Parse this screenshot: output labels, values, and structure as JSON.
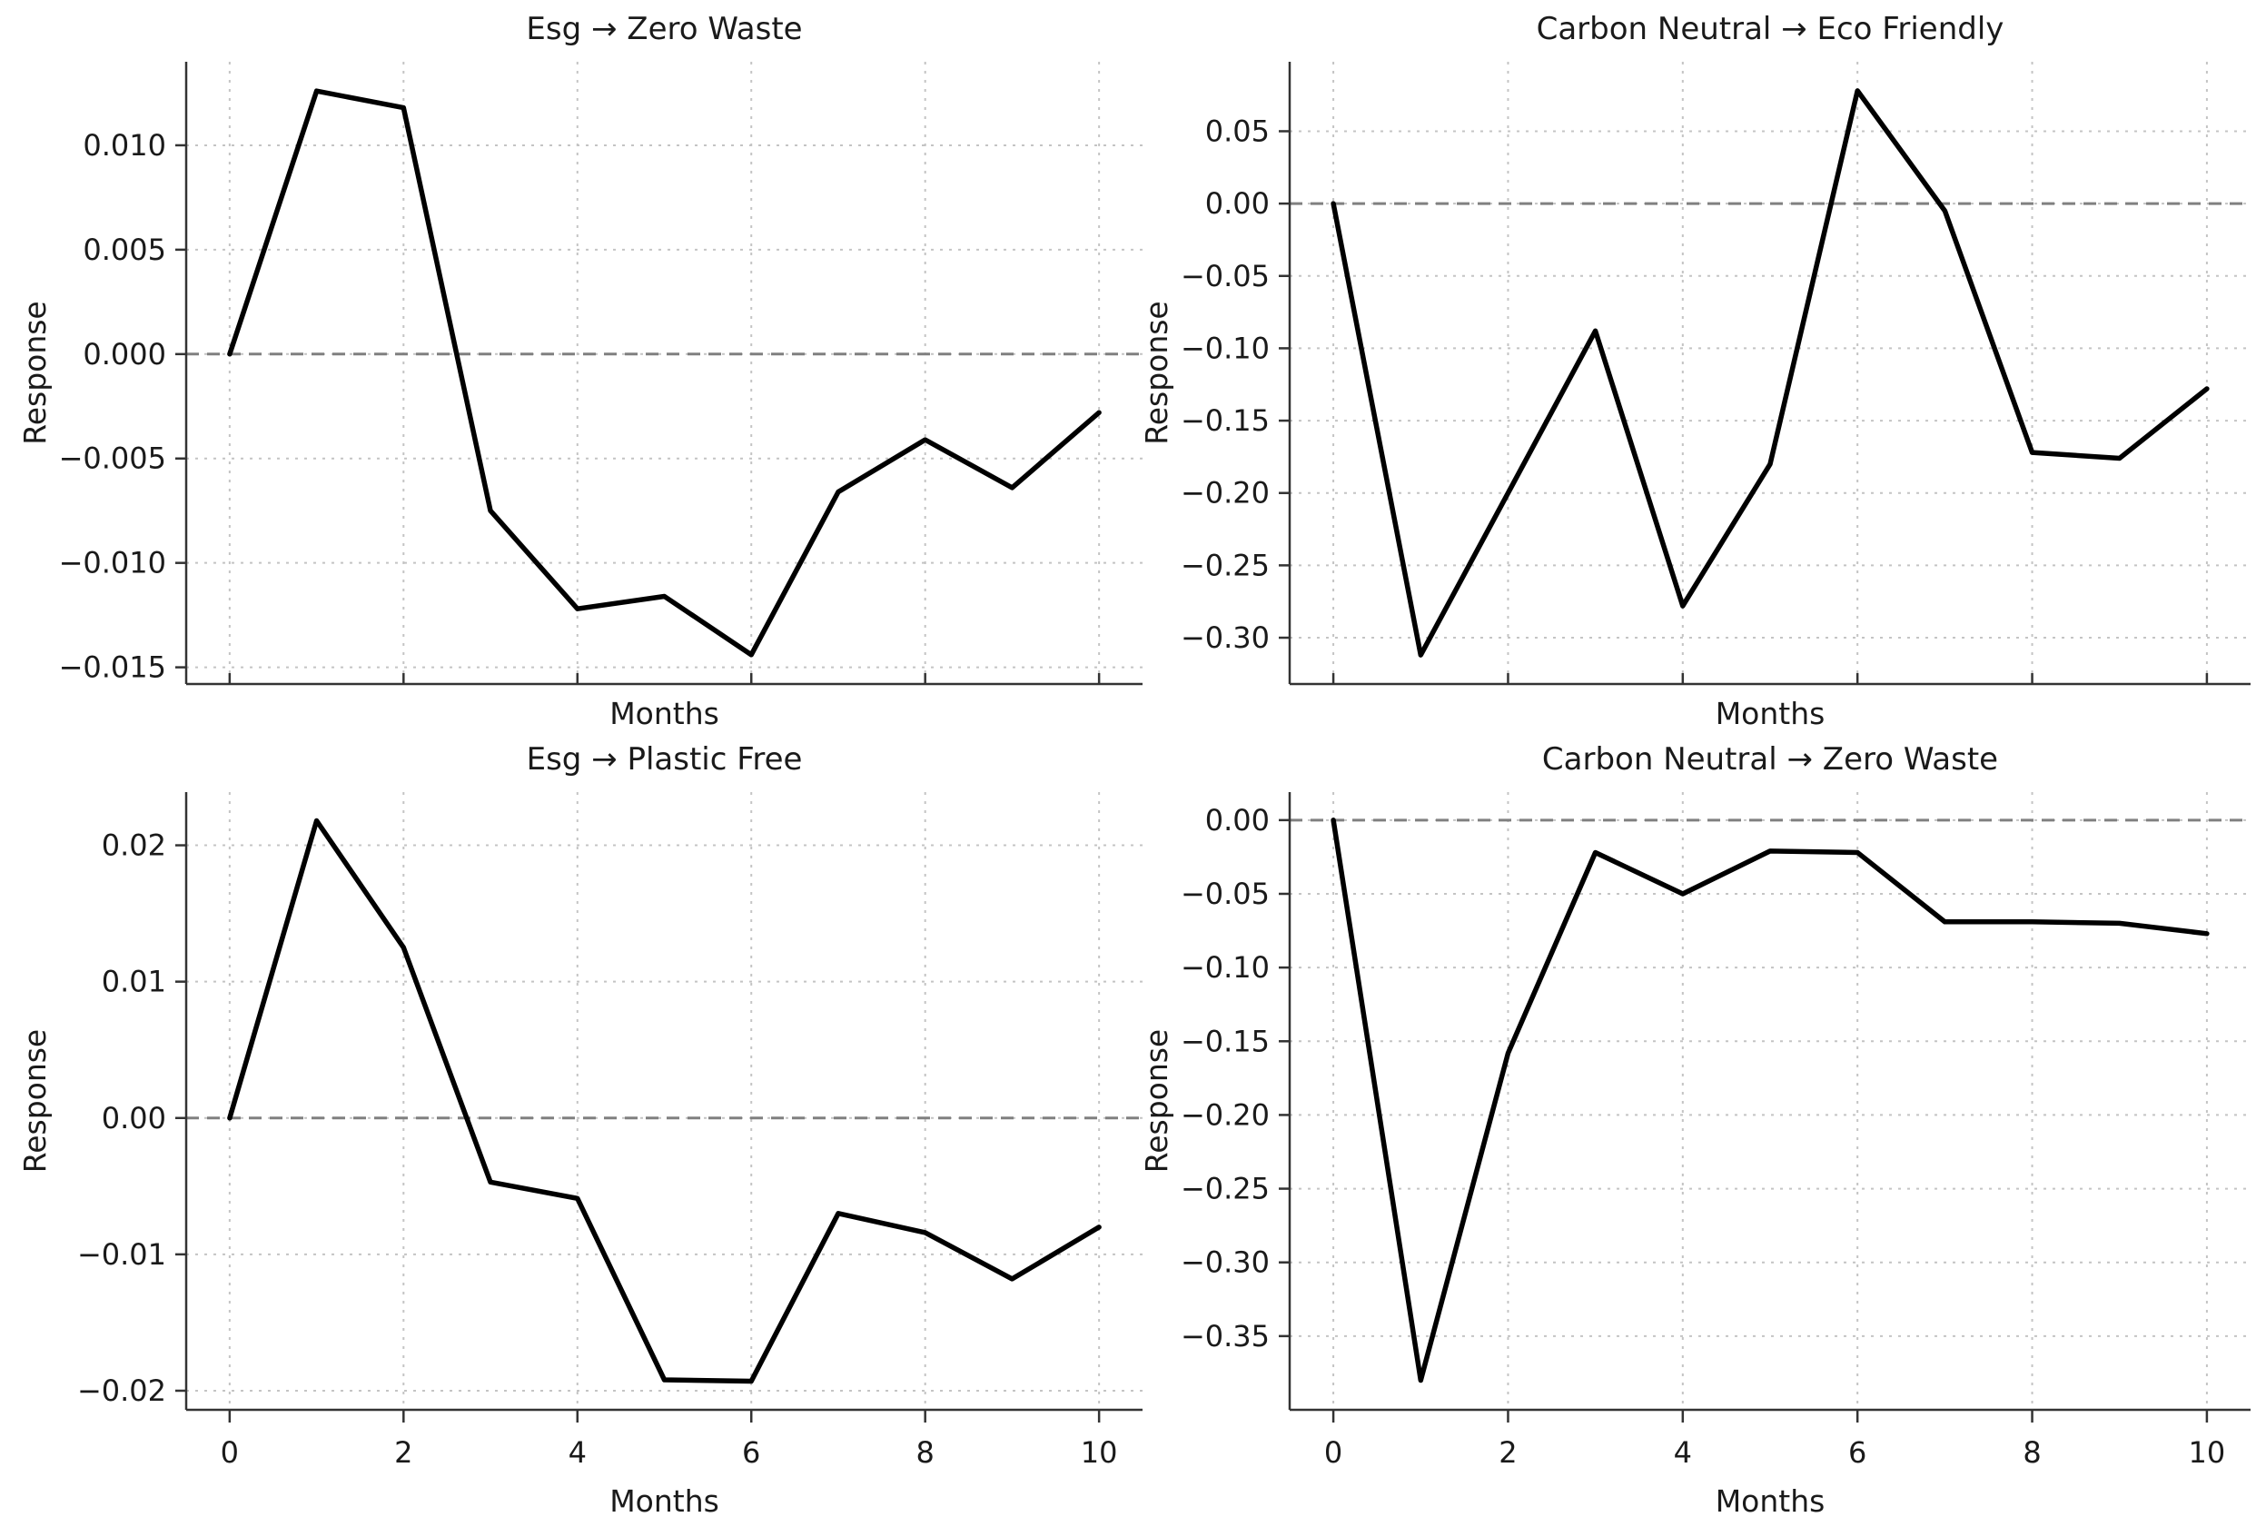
{
  "figure": {
    "background": "#ffffff",
    "text_color": "#1a1a1a",
    "series_color": "#000000",
    "grid_color": "#c4c4c4",
    "zero_line_color": "#808080",
    "spine_color": "#333333"
  },
  "chart_data": [
    {
      "type": "line",
      "title": "Esg → Zero Waste",
      "xlabel": "Months",
      "ylabel": "Response",
      "x": [
        0,
        1,
        2,
        3,
        4,
        5,
        6,
        7,
        8,
        9,
        10
      ],
      "values": [
        0.0,
        0.0126,
        0.0118,
        -0.0075,
        -0.0122,
        -0.0116,
        -0.0144,
        -0.0066,
        -0.0041,
        -0.0064,
        -0.0028
      ],
      "xlim": [
        -0.5,
        10.5
      ],
      "ylim": [
        -0.0158,
        0.014
      ],
      "xticks": [
        0,
        2,
        4,
        6,
        8,
        10
      ],
      "xtick_labels": [
        "0",
        "2",
        "4",
        "6",
        "8",
        "10"
      ],
      "show_xtick_labels": false,
      "yticks": [
        0.01,
        0.005,
        0.0,
        -0.005,
        -0.01,
        -0.015
      ],
      "ytick_labels": [
        "0.010",
        "0.005",
        "0.000",
        "−0.005",
        "−0.010",
        "−0.015"
      ],
      "zero_line": true,
      "grid": true,
      "legend": "none"
    },
    {
      "type": "line",
      "title": "Carbon Neutral → Eco Friendly",
      "xlabel": "Months",
      "ylabel": "Response",
      "x": [
        0,
        1,
        2,
        3,
        4,
        5,
        6,
        7,
        8,
        9,
        10
      ],
      "values": [
        0.0,
        -0.312,
        -0.2,
        -0.088,
        -0.278,
        -0.18,
        0.078,
        -0.005,
        -0.172,
        -0.176,
        -0.128
      ],
      "xlim": [
        -0.5,
        10.5
      ],
      "ylim": [
        -0.332,
        0.098
      ],
      "xticks": [
        0,
        2,
        4,
        6,
        8,
        10
      ],
      "xtick_labels": [
        "0",
        "2",
        "4",
        "6",
        "8",
        "10"
      ],
      "show_xtick_labels": false,
      "yticks": [
        0.05,
        0.0,
        -0.05,
        -0.1,
        -0.15,
        -0.2,
        -0.25,
        -0.3
      ],
      "ytick_labels": [
        "0.05",
        "0.00",
        "−0.05",
        "−0.10",
        "−0.15",
        "−0.20",
        "−0.25",
        "−0.30"
      ],
      "zero_line": true,
      "grid": true,
      "legend": "none"
    },
    {
      "type": "line",
      "title": "Esg → Plastic Free",
      "xlabel": "Months",
      "ylabel": "Response",
      "x": [
        0,
        1,
        2,
        3,
        4,
        5,
        6,
        7,
        8,
        9,
        10
      ],
      "values": [
        0.0,
        0.0218,
        0.0125,
        -0.0047,
        -0.0059,
        -0.0192,
        -0.0193,
        -0.007,
        -0.0084,
        -0.0118,
        -0.008
      ],
      "xlim": [
        -0.5,
        10.5
      ],
      "ylim": [
        -0.0214,
        0.0239
      ],
      "xticks": [
        0,
        2,
        4,
        6,
        8,
        10
      ],
      "xtick_labels": [
        "0",
        "2",
        "4",
        "6",
        "8",
        "10"
      ],
      "show_xtick_labels": true,
      "yticks": [
        0.02,
        0.01,
        0.0,
        -0.01,
        -0.02
      ],
      "ytick_labels": [
        "0.02",
        "0.01",
        "0.00",
        "−0.01",
        "−0.02"
      ],
      "zero_line": true,
      "grid": true,
      "legend": "none"
    },
    {
      "type": "line",
      "title": "Carbon Neutral → Zero Waste",
      "xlabel": "Months",
      "ylabel": "Response",
      "x": [
        0,
        1,
        2,
        3,
        4,
        5,
        6,
        7,
        8,
        9,
        10
      ],
      "values": [
        0.0,
        -0.38,
        -0.158,
        -0.022,
        -0.05,
        -0.021,
        -0.022,
        -0.069,
        -0.069,
        -0.07,
        -0.077
      ],
      "xlim": [
        -0.5,
        10.5
      ],
      "ylim": [
        -0.4,
        0.019
      ],
      "xticks": [
        0,
        2,
        4,
        6,
        8,
        10
      ],
      "xtick_labels": [
        "0",
        "2",
        "4",
        "6",
        "8",
        "10"
      ],
      "show_xtick_labels": true,
      "yticks": [
        0.0,
        -0.05,
        -0.1,
        -0.15,
        -0.2,
        -0.25,
        -0.3,
        -0.35
      ],
      "ytick_labels": [
        "0.00",
        "−0.05",
        "−0.10",
        "−0.15",
        "−0.20",
        "−0.25",
        "−0.30",
        "−0.35"
      ],
      "zero_line": true,
      "grid": true,
      "legend": "none"
    }
  ]
}
